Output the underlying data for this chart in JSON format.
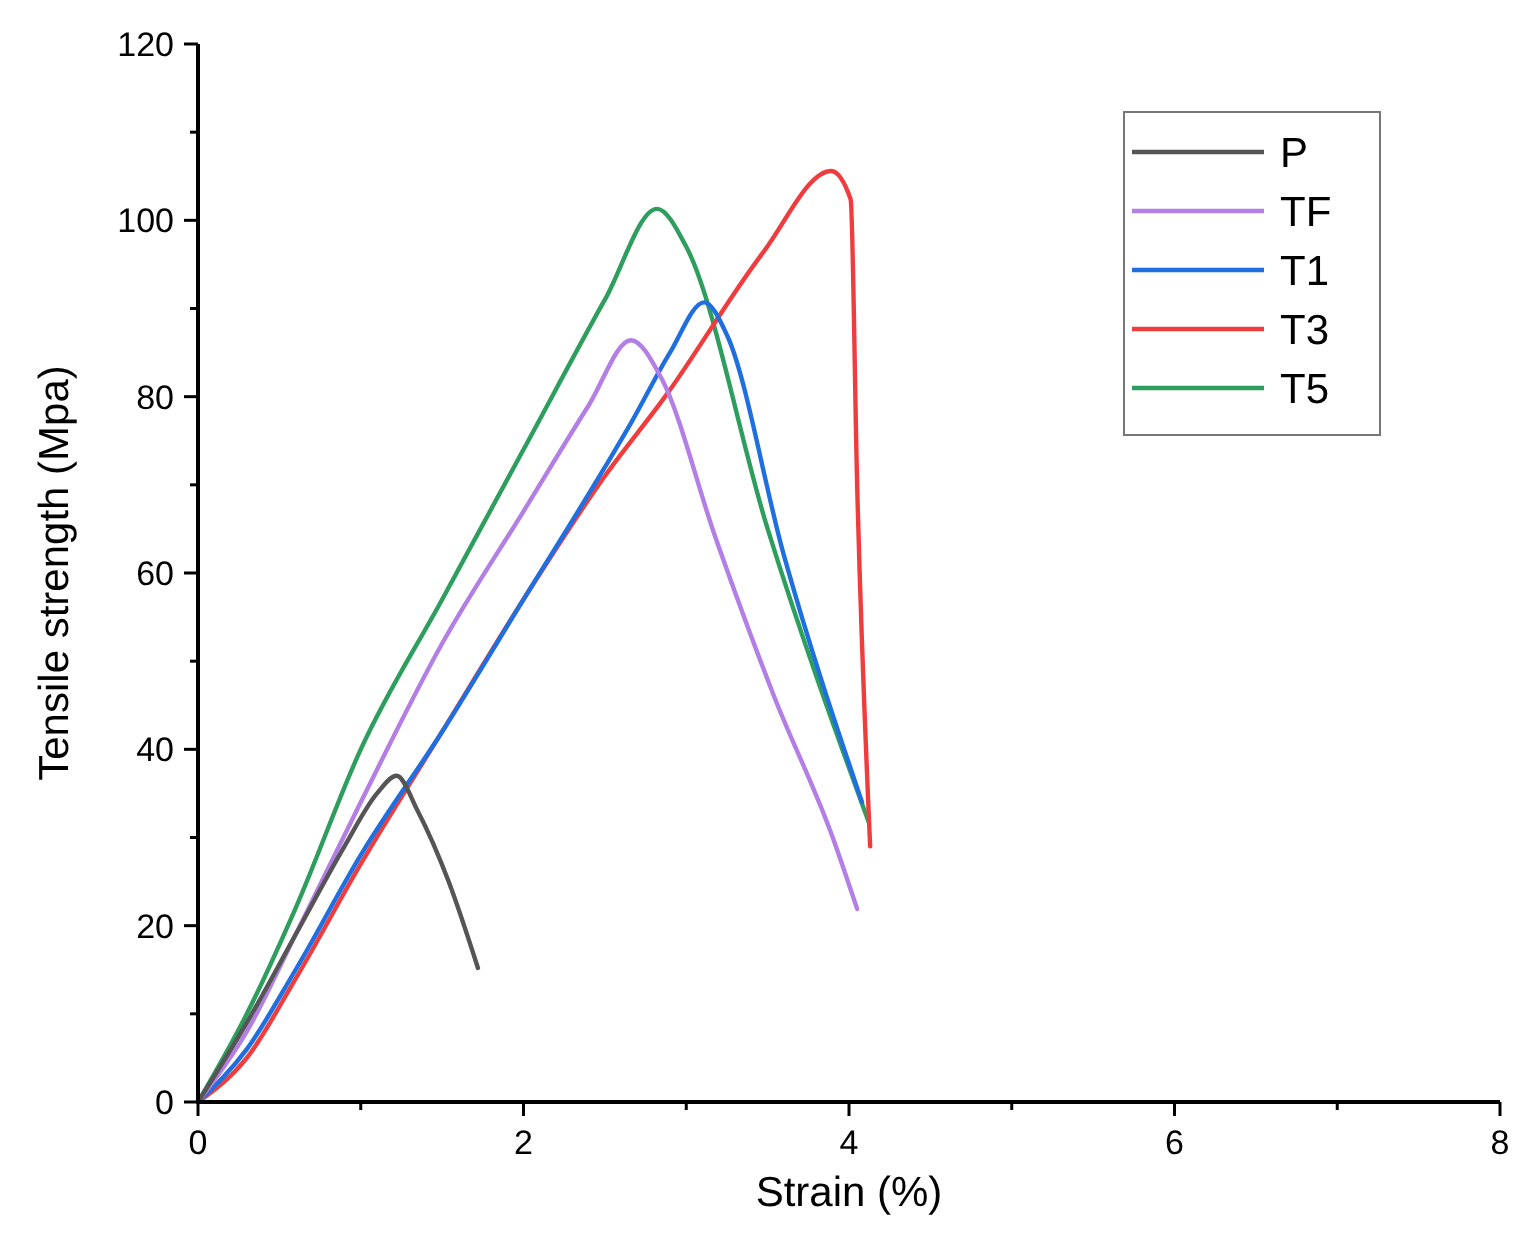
{
  "chart_data": {
    "type": "line",
    "xlabel": "Strain (%)",
    "ylabel": "Tensile strength (Mpa)",
    "xlim": [
      0,
      8
    ],
    "xticks": [
      0,
      2,
      4,
      6,
      8
    ],
    "ylim": [
      0,
      120
    ],
    "yticks": [
      0,
      20,
      40,
      60,
      80,
      100,
      120
    ],
    "grid": false,
    "legend": "top right",
    "marker": "none",
    "line_style": "solid",
    "series": [
      {
        "name": "P",
        "color": "#555555",
        "x": [
          0,
          0.3,
          0.6,
          0.9,
          1.1,
          1.22,
          1.35,
          1.54,
          1.72
        ],
        "values": [
          0,
          9,
          19,
          29,
          35,
          37,
          33,
          25,
          15.2
        ]
      },
      {
        "name": "TF",
        "color": "#b37fe6",
        "x": [
          0,
          0.3,
          0.6,
          1,
          1.5,
          2,
          2.4,
          2.66,
          2.85,
          3.18,
          3.54,
          3.9,
          4.05
        ],
        "values": [
          0,
          8,
          19,
          34,
          52,
          67,
          79,
          86.4,
          82,
          64,
          46,
          30,
          21.9
        ]
      },
      {
        "name": "T1",
        "color": "#1f6fe0",
        "x": [
          0,
          0.3,
          0.6,
          1,
          1.5,
          2,
          2.5,
          2.66,
          2.9,
          3.11,
          3.25,
          3.6,
          4.08
        ],
        "values": [
          0,
          6,
          15,
          28,
          42,
          57,
          72,
          77,
          85,
          90.7,
          87,
          62,
          34
        ]
      },
      {
        "name": "T3",
        "color": "#f03c3c",
        "x": [
          0,
          0.3,
          0.6,
          1,
          1.5,
          2,
          2.5,
          2.87,
          3.47,
          3.89,
          4.01,
          4.05,
          4.13
        ],
        "values": [
          0,
          5,
          14,
          27,
          42,
          57,
          71,
          80,
          96.3,
          105.6,
          102.4,
          70,
          29
        ]
      },
      {
        "name": "T5",
        "color": "#2e9e5e",
        "x": [
          0,
          0.3,
          0.6,
          1,
          1.5,
          2,
          2.5,
          2.82,
          3,
          3.5,
          4.12
        ],
        "values": [
          0,
          10,
          22,
          40,
          57,
          74,
          91,
          101.3,
          97,
          65,
          31.8
        ]
      }
    ]
  }
}
